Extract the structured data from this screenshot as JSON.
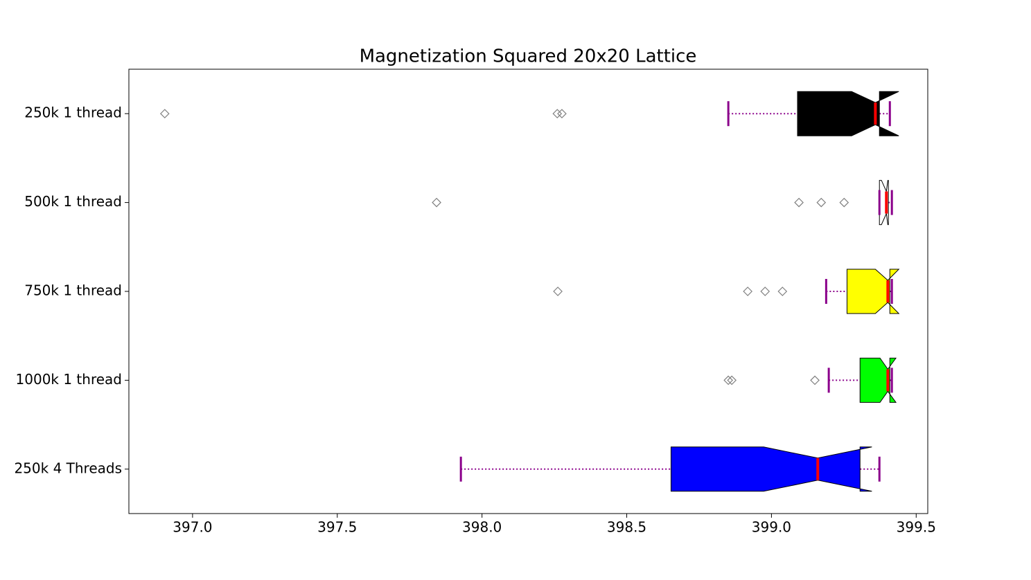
{
  "chart_data": {
    "type": "boxplot",
    "title": "Magnetization Squared 20x20 Lattice",
    "orientation": "horizontal",
    "notch": true,
    "categories": [
      "250k 1 thread",
      "500k 1 thread",
      "750k 1 thread",
      "1000k 1 thread",
      "250k 4 Threads"
    ],
    "boxes": [
      {
        "color": "#000000",
        "whislo": 398.851,
        "q1": 399.09,
        "notch_low": 399.277,
        "median": 399.359,
        "notch_high": 399.44,
        "q3": 399.373,
        "whishi": 399.409,
        "fliers": [
          396.904,
          398.26,
          398.276
        ]
      },
      {
        "color": "#ffffff",
        "whislo": 399.373,
        "q1": 399.373,
        "notch_low": 399.38,
        "median": 399.397,
        "notch_high": 399.402,
        "q3": 399.404,
        "whishi": 399.416,
        "fliers": [
          397.843,
          399.095,
          399.172,
          399.251
        ]
      },
      {
        "color": "#ffff00",
        "whislo": 399.189,
        "q1": 399.261,
        "notch_low": 399.359,
        "median": 399.402,
        "notch_high": 399.44,
        "q3": 399.409,
        "whishi": 399.416,
        "fliers": [
          398.262,
          398.918,
          398.978,
          399.038
        ]
      },
      {
        "color": "#00ff00",
        "whislo": 399.198,
        "q1": 399.306,
        "notch_low": 399.375,
        "median": 399.402,
        "notch_high": 399.43,
        "q3": 399.409,
        "whishi": 399.416,
        "fliers": [
          398.851,
          398.863,
          399.15
        ]
      },
      {
        "color": "#0000ff",
        "whislo": 397.927,
        "q1": 398.653,
        "notch_low": 398.973,
        "median": 399.16,
        "notch_high": 399.347,
        "q3": 399.306,
        "whishi": 399.373,
        "fliers": []
      }
    ],
    "median_color": "#ff0000",
    "whisker_color": "#8b008b",
    "flier_color": "#808080",
    "xlim": [
      396.78,
      399.54
    ],
    "xticks": [
      {
        "value": 397,
        "label": "397.0"
      },
      397.5,
      {
        "value": 398,
        "label": "398.0"
      },
      398.5,
      {
        "value": 399,
        "label": "399.0"
      },
      399.5
    ]
  }
}
